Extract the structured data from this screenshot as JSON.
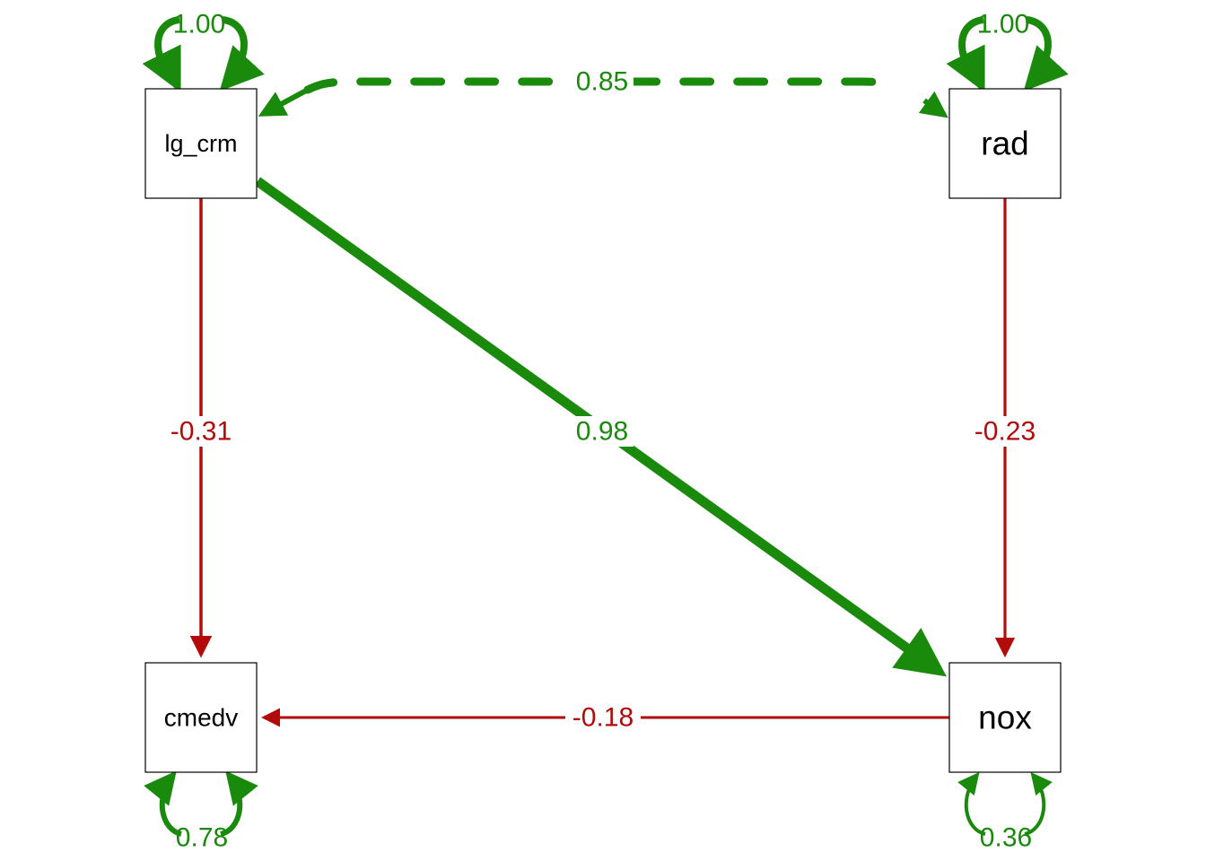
{
  "colors": {
    "positive": "#1a8a0d",
    "negative": "#b30a0a"
  },
  "nodes": {
    "lg_crm": "lg_crm",
    "rad": "rad",
    "cmedv": "cmedv",
    "nox": "nox"
  },
  "edges": {
    "lg_crm_rad_covariance": "0.85",
    "lg_crm_to_nox": "0.98",
    "lg_crm_to_cmedv": "-0.31",
    "rad_to_nox": "-0.23",
    "nox_to_cmedv": "-0.18"
  },
  "variances": {
    "lg_crm": "1.00",
    "rad": "1.00",
    "cmedv": "0.78",
    "nox": "0.36"
  }
}
